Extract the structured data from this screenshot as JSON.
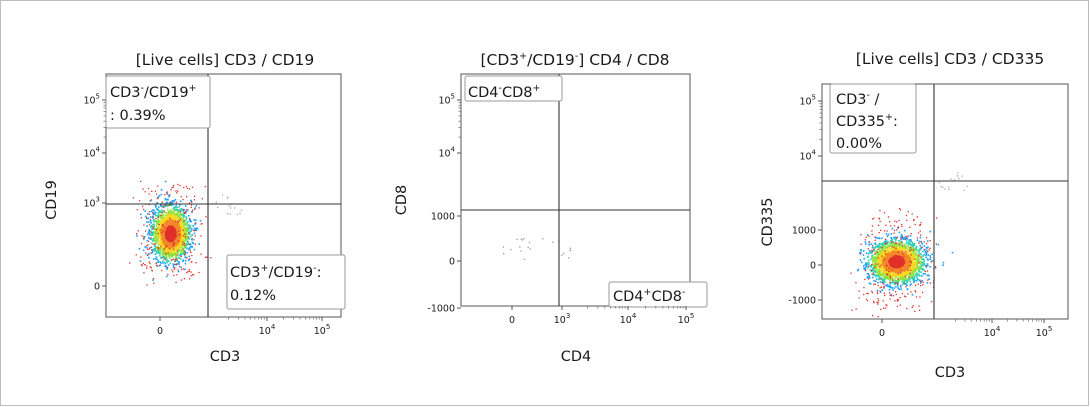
{
  "chart_data": [
    {
      "type": "scatter",
      "title": "[Live cells] CD3 / CD19",
      "xlabel": "CD3",
      "ylabel": "CD19",
      "x_ticks": [
        "0",
        "10^4",
        "10^5"
      ],
      "y_ticks": [
        "0",
        "10^3",
        "10^4",
        "10^5"
      ],
      "gates": [
        {
          "label": "CD3-/CD19+: 0.39%",
          "lines": [
            [
              {
                "t": "CD3"
              },
              {
                "t": "-",
                "sup": true
              },
              {
                "t": "/CD19"
              },
              {
                "t": "+",
                "sup": true
              }
            ],
            [
              {
                "t": ": 0.39%"
              }
            ]
          ],
          "quadrant": "top-left",
          "percent": 0.39
        },
        {
          "label": "CD3+/CD19-: 0.12%",
          "lines": [
            [
              {
                "t": "CD3"
              },
              {
                "t": "+",
                "sup": true
              },
              {
                "t": "/CD19"
              },
              {
                "t": "-",
                "sup": true
              },
              {
                "t": ":"
              }
            ],
            [
              {
                "t": "0.12%"
              }
            ]
          ],
          "quadrant": "bottom-right",
          "percent": 0.12
        }
      ],
      "population": {
        "quadrant": "bottom-left",
        "description": "dense event cloud near CD3 0 / CD19 low"
      }
    },
    {
      "type": "scatter",
      "title": "[CD3+/CD19-] CD4 / CD8",
      "title_runs": [
        {
          "t": "[CD3"
        },
        {
          "t": "+",
          "sup": true
        },
        {
          "t": "/CD19"
        },
        {
          "t": "-",
          "sup": true
        },
        {
          "t": "] CD4 / CD8"
        }
      ],
      "xlabel": "CD4",
      "ylabel": "CD8",
      "x_ticks": [
        "0",
        "10^3",
        "10^4",
        "10^5"
      ],
      "y_ticks": [
        "-1000",
        "0",
        "1000",
        "10^4",
        "10^5"
      ],
      "gates": [
        {
          "label": "CD4-CD8+",
          "lines": [
            [
              {
                "t": "CD4"
              },
              {
                "t": "-",
                "sup": true
              },
              {
                "t": "CD8"
              },
              {
                "t": "+",
                "sup": true
              }
            ]
          ],
          "quadrant": "top-left"
        },
        {
          "label": "CD4+CD8-",
          "lines": [
            [
              {
                "t": "CD4"
              },
              {
                "t": "+",
                "sup": true
              },
              {
                "t": "CD8"
              },
              {
                "t": "-",
                "sup": true
              }
            ]
          ],
          "quadrant": "bottom-right"
        }
      ],
      "population": {
        "quadrant": "bottom-left",
        "description": "few scattered events"
      }
    },
    {
      "type": "scatter",
      "title": "[Live cells] CD3 / CD335",
      "xlabel": "CD3",
      "ylabel": "CD335",
      "x_ticks": [
        "0",
        "10^4",
        "10^5"
      ],
      "y_ticks": [
        "-1000",
        "0",
        "1000",
        "10^4",
        "10^5"
      ],
      "gates": [
        {
          "label": "CD3-/CD335+: 0.00%",
          "lines": [
            [
              {
                "t": "CD3"
              },
              {
                "t": "-",
                "sup": true
              },
              {
                "t": " /"
              }
            ],
            [
              {
                "t": "CD335"
              },
              {
                "t": "+",
                "sup": true
              },
              {
                "t": ":"
              }
            ],
            [
              {
                "t": "0.00%"
              }
            ]
          ],
          "quadrant": "top-left",
          "percent": 0.0
        }
      ],
      "population": {
        "quadrant": "bottom-left",
        "description": "dense event cloud near CD3 0 / CD335 0"
      }
    }
  ]
}
